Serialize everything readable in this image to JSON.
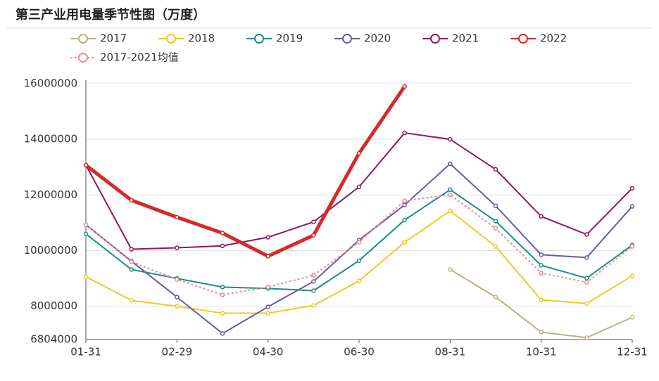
{
  "chart_data": {
    "type": "line",
    "title": "第三产业用电量季节性图（万度）",
    "categories": [
      "01-31",
      null,
      "02-29",
      null,
      "04-30",
      null,
      "06-30",
      null,
      "08-31",
      null,
      "10-31",
      null,
      "12-31"
    ],
    "ylim": [
      6804000,
      16000000
    ],
    "yticks": [
      6804000,
      8000000,
      10000000,
      12000000,
      14000000,
      16000000
    ],
    "grid": true,
    "series": [
      {
        "name": "2017",
        "color": "#bdb283",
        "values": [
          null,
          null,
          null,
          null,
          null,
          null,
          null,
          null,
          9320000,
          8330000,
          7070000,
          6870000,
          7600000
        ]
      },
      {
        "name": "2018",
        "color": "#f6c624",
        "values": [
          9060000,
          8210000,
          8000000,
          7750000,
          7750000,
          8030000,
          8910000,
          10300000,
          11430000,
          10150000,
          8230000,
          8100000,
          9090000
        ]
      },
      {
        "name": "2019",
        "color": "#1b8c8c",
        "values": [
          10600000,
          9320000,
          9000000,
          8690000,
          8640000,
          8560000,
          9640000,
          11100000,
          12190000,
          11060000,
          9470000,
          9010000,
          10200000
        ]
      },
      {
        "name": "2020",
        "color": "#6a5aa8",
        "values": [
          10930000,
          9620000,
          8330000,
          7020000,
          7980000,
          8890000,
          10380000,
          11640000,
          13120000,
          11610000,
          9850000,
          9750000,
          11590000
        ]
      },
      {
        "name": "2021",
        "color": "#8c1b5c",
        "values": [
          13070000,
          10050000,
          10100000,
          10170000,
          10480000,
          11030000,
          12290000,
          14230000,
          14000000,
          12920000,
          11230000,
          10580000,
          12240000
        ]
      },
      {
        "name": "2022",
        "color": "#d62a2a",
        "line_width": 5,
        "values": [
          13070000,
          11810000,
          11200000,
          10630000,
          9800000,
          10550000,
          13500000,
          15900000,
          null,
          null,
          null,
          null,
          null
        ]
      },
      {
        "name": "2017-2021均值",
        "color": "#f08a8a",
        "dashed": true,
        "values": [
          10930000,
          9600000,
          8960000,
          8410000,
          8690000,
          9110000,
          10300000,
          11790000,
          12010000,
          10800000,
          9190000,
          8860000,
          10150000
        ]
      }
    ]
  }
}
